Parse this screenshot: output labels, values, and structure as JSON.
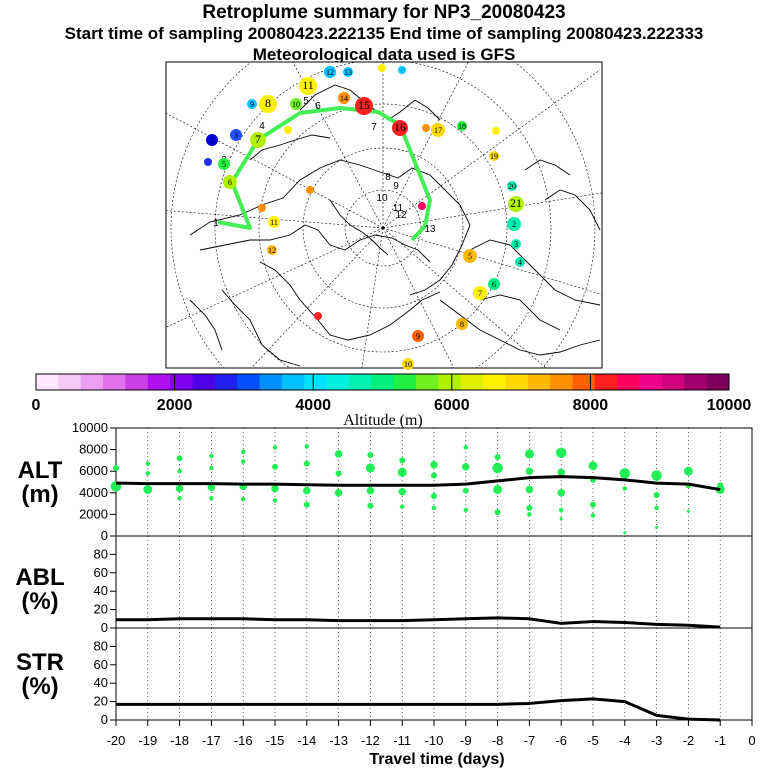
{
  "header": {
    "title": "Retroplume summary for NP3_20080423",
    "sampling": "Start time of sampling 20080423.222135     End time of sampling 20080423.222333",
    "met": "Meteorological data used is GFS"
  },
  "colorbar": {
    "ticks": [
      "0",
      "2000",
      "4000",
      "6000",
      "8000",
      "10000"
    ],
    "label": "Altitude (m)",
    "colors": [
      "#ffe8ff",
      "#f5c8f5",
      "#ec9ef0",
      "#e070ec",
      "#cc40e8",
      "#b010f0",
      "#8000f0",
      "#5000e8",
      "#2020f0",
      "#0050ff",
      "#0090ff",
      "#00bfff",
      "#00e0ff",
      "#00f0e0",
      "#00f0b0",
      "#00f080",
      "#20f040",
      "#70f020",
      "#b0f000",
      "#e0f000",
      "#fff000",
      "#ffd800",
      "#ffb800",
      "#ff9000",
      "#ff6000",
      "#ff2020",
      "#ff0060",
      "#f0008c",
      "#d0007c",
      "#a0006c",
      "#800060"
    ]
  },
  "map": {
    "track_color": "#44ee55",
    "track_labels": [
      "1",
      "2",
      "3",
      "4",
      "5",
      "6",
      "7",
      "8",
      "9",
      "10",
      "11",
      "12",
      "13"
    ],
    "cluster_labels": [
      "2",
      "3",
      "4",
      "5",
      "6",
      "7",
      "8",
      "9",
      "10",
      "11",
      "12",
      "13",
      "14",
      "15",
      "16",
      "17",
      "18",
      "19",
      "20",
      "21"
    ]
  },
  "panel_labels": {
    "alt": [
      "ALT",
      "(m)"
    ],
    "abl": [
      "ABL",
      "(%)"
    ],
    "str": [
      "STR",
      "(%)"
    ]
  },
  "xlabel": "Travel time (days)",
  "chart_data": [
    {
      "type": "line",
      "name": "ALT",
      "title": "",
      "xlabel": "Travel time (days)",
      "ylabel": "ALT (m)",
      "xlim": [
        -20,
        0
      ],
      "ylim": [
        0,
        10000
      ],
      "yticks": [
        0,
        2000,
        4000,
        6000,
        8000,
        10000
      ],
      "xticks": [
        -20,
        -19,
        -18,
        -17,
        -16,
        -15,
        -14,
        -13,
        -12,
        -11,
        -10,
        -9,
        -8,
        -7,
        -6,
        -5,
        -4,
        -3,
        -2,
        -1,
        0
      ],
      "series": [
        {
          "name": "mean altitude",
          "x": [
            -20,
            -19,
            -18,
            -17,
            -16,
            -15,
            -14,
            -13,
            -12,
            -11,
            -10,
            -9,
            -8,
            -7,
            -6,
            -5,
            -4,
            -3,
            -2,
            -1
          ],
          "values": [
            4900,
            4850,
            4850,
            4850,
            4800,
            4800,
            4750,
            4700,
            4700,
            4700,
            4700,
            4800,
            5100,
            5400,
            5500,
            5400,
            5200,
            4900,
            4800,
            4300
          ]
        }
      ],
      "clusters": [
        {
          "x": -20,
          "y": 6300,
          "s": 4
        },
        {
          "x": -20,
          "y": 4600,
          "s": 7
        },
        {
          "x": -19,
          "y": 6700,
          "s": 3
        },
        {
          "x": -19,
          "y": 5800,
          "s": 3
        },
        {
          "x": -19,
          "y": 4300,
          "s": 6
        },
        {
          "x": -18,
          "y": 7200,
          "s": 4
        },
        {
          "x": -18,
          "y": 6000,
          "s": 3
        },
        {
          "x": -18,
          "y": 4400,
          "s": 5
        },
        {
          "x": -18,
          "y": 3500,
          "s": 3
        },
        {
          "x": -17,
          "y": 7400,
          "s": 3
        },
        {
          "x": -17,
          "y": 6300,
          "s": 3
        },
        {
          "x": -17,
          "y": 4500,
          "s": 5
        },
        {
          "x": -17,
          "y": 3500,
          "s": 3
        },
        {
          "x": -16,
          "y": 7800,
          "s": 3
        },
        {
          "x": -16,
          "y": 6900,
          "s": 3
        },
        {
          "x": -16,
          "y": 4600,
          "s": 5
        },
        {
          "x": -16,
          "y": 3400,
          "s": 3
        },
        {
          "x": -15,
          "y": 8200,
          "s": 3
        },
        {
          "x": -15,
          "y": 6400,
          "s": 4
        },
        {
          "x": -15,
          "y": 4400,
          "s": 5
        },
        {
          "x": -15,
          "y": 3300,
          "s": 3
        },
        {
          "x": -14,
          "y": 8300,
          "s": 3
        },
        {
          "x": -14,
          "y": 6700,
          "s": 4
        },
        {
          "x": -14,
          "y": 4200,
          "s": 5
        },
        {
          "x": -14,
          "y": 2900,
          "s": 4
        },
        {
          "x": -13,
          "y": 7600,
          "s": 5
        },
        {
          "x": -13,
          "y": 5800,
          "s": 4
        },
        {
          "x": -13,
          "y": 4000,
          "s": 5
        },
        {
          "x": -12,
          "y": 7500,
          "s": 4
        },
        {
          "x": -12,
          "y": 6300,
          "s": 6
        },
        {
          "x": -12,
          "y": 4200,
          "s": 5
        },
        {
          "x": -12,
          "y": 2800,
          "s": 4
        },
        {
          "x": -11,
          "y": 7000,
          "s": 4
        },
        {
          "x": -11,
          "y": 5900,
          "s": 6
        },
        {
          "x": -11,
          "y": 4100,
          "s": 5
        },
        {
          "x": -11,
          "y": 2700,
          "s": 3
        },
        {
          "x": -10,
          "y": 6600,
          "s": 5
        },
        {
          "x": -10,
          "y": 5600,
          "s": 4
        },
        {
          "x": -10,
          "y": 3700,
          "s": 4
        },
        {
          "x": -10,
          "y": 2600,
          "s": 3
        },
        {
          "x": -9,
          "y": 8200,
          "s": 3
        },
        {
          "x": -9,
          "y": 6400,
          "s": 5
        },
        {
          "x": -9,
          "y": 4200,
          "s": 4
        },
        {
          "x": -9,
          "y": 2400,
          "s": 3
        },
        {
          "x": -8,
          "y": 7300,
          "s": 4
        },
        {
          "x": -8,
          "y": 6300,
          "s": 7
        },
        {
          "x": -8,
          "y": 4300,
          "s": 6
        },
        {
          "x": -8,
          "y": 2200,
          "s": 4
        },
        {
          "x": -7,
          "y": 7600,
          "s": 6
        },
        {
          "x": -7,
          "y": 6000,
          "s": 5
        },
        {
          "x": -7,
          "y": 4300,
          "s": 5
        },
        {
          "x": -7,
          "y": 2600,
          "s": 4
        },
        {
          "x": -7,
          "y": 2000,
          "s": 3
        },
        {
          "x": -6,
          "y": 7700,
          "s": 7
        },
        {
          "x": -6,
          "y": 5900,
          "s": 5
        },
        {
          "x": -6,
          "y": 4000,
          "s": 5
        },
        {
          "x": -6,
          "y": 2400,
          "s": 3
        },
        {
          "x": -6,
          "y": 1600,
          "s": 2
        },
        {
          "x": -5,
          "y": 6500,
          "s": 6
        },
        {
          "x": -5,
          "y": 5200,
          "s": 4
        },
        {
          "x": -5,
          "y": 2900,
          "s": 4
        },
        {
          "x": -5,
          "y": 1900,
          "s": 3
        },
        {
          "x": -4,
          "y": 5800,
          "s": 7
        },
        {
          "x": -4,
          "y": 4400,
          "s": 3
        },
        {
          "x": -4,
          "y": 300,
          "s": 2
        },
        {
          "x": -3,
          "y": 5600,
          "s": 7
        },
        {
          "x": -3,
          "y": 3800,
          "s": 4
        },
        {
          "x": -3,
          "y": 2600,
          "s": 3
        },
        {
          "x": -3,
          "y": 800,
          "s": 2
        },
        {
          "x": -2,
          "y": 6000,
          "s": 6
        },
        {
          "x": -2,
          "y": 4700,
          "s": 4
        },
        {
          "x": -2,
          "y": 2300,
          "s": 2
        },
        {
          "x": -1,
          "y": 4300,
          "s": 6
        },
        {
          "x": -1,
          "y": 4700,
          "s": 4
        }
      ]
    },
    {
      "type": "line",
      "name": "ABL",
      "ylabel": "ABL (%)",
      "xlim": [
        -20,
        0
      ],
      "ylim": [
        0,
        100
      ],
      "yticks": [
        0,
        20,
        40,
        60,
        80
      ],
      "series": [
        {
          "name": "ABL fraction",
          "x": [
            -20,
            -19,
            -18,
            -17,
            -16,
            -15,
            -14,
            -13,
            -12,
            -11,
            -10,
            -9,
            -8,
            -7,
            -6,
            -5,
            -4,
            -3,
            -2,
            -1
          ],
          "values": [
            9,
            9,
            10,
            10,
            10,
            9,
            9,
            8,
            8,
            8,
            9,
            10,
            11,
            10,
            5,
            7,
            6,
            4,
            3,
            1
          ]
        }
      ]
    },
    {
      "type": "line",
      "name": "STR",
      "ylabel": "STR (%)",
      "xlim": [
        -20,
        0
      ],
      "ylim": [
        0,
        100
      ],
      "yticks": [
        0,
        20,
        40,
        60,
        80
      ],
      "series": [
        {
          "name": "stratospheric fraction",
          "x": [
            -20,
            -19,
            -18,
            -17,
            -16,
            -15,
            -14,
            -13,
            -12,
            -11,
            -10,
            -9,
            -8,
            -7,
            -6,
            -5,
            -4,
            -3,
            -2,
            -1
          ],
          "values": [
            17,
            17,
            17,
            17,
            17,
            17,
            17,
            17,
            17,
            17,
            17,
            17,
            17,
            18,
            21,
            23,
            20,
            5,
            1,
            0
          ]
        }
      ]
    }
  ]
}
